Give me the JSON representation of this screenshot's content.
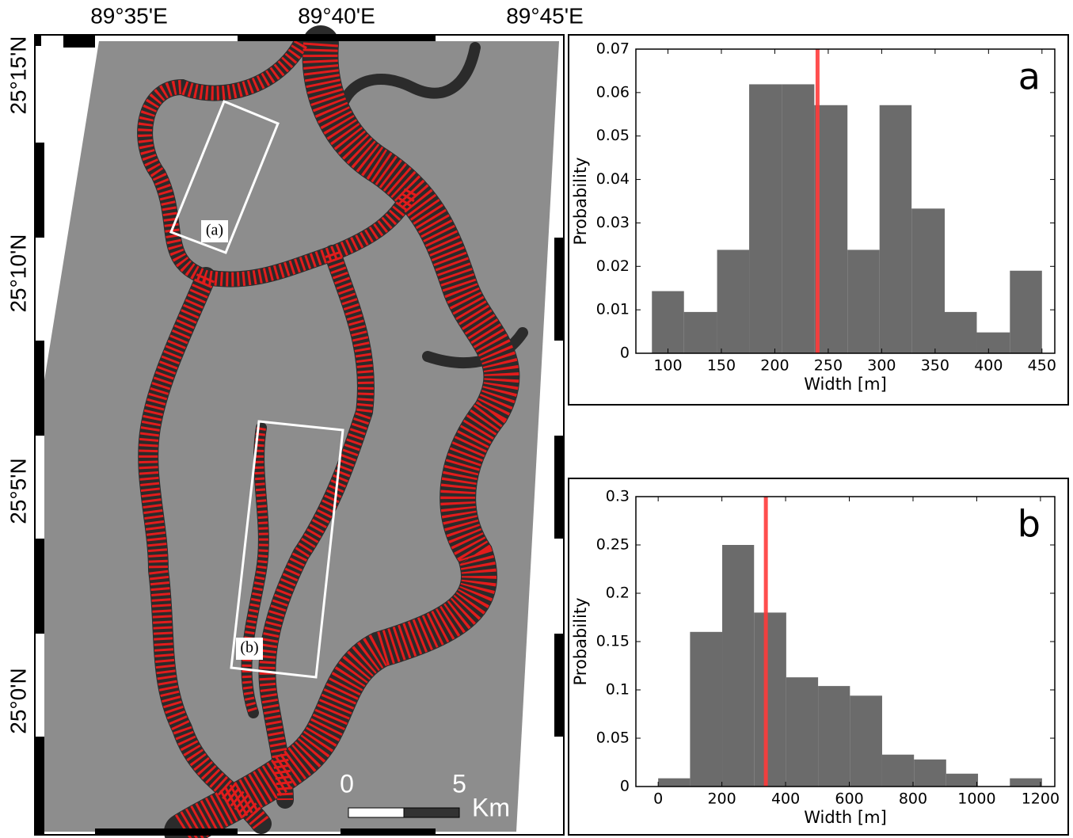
{
  "map": {
    "lon_labels": [
      "89°35'E",
      "89°40'E",
      "89°45'E"
    ],
    "lat_labels": [
      "25°15'N",
      "25°10'N",
      "25°5'N",
      "25°0'N"
    ],
    "box_labels": [
      "(a)",
      "(b)"
    ],
    "scale_labels": [
      "0",
      "5",
      "Km"
    ]
  },
  "chart_data": [
    {
      "type": "histogram",
      "panel_label": "a",
      "x_label": "Width [m]",
      "y_label": "Probability",
      "bins": [
        85,
        115,
        146,
        176,
        207,
        237,
        268,
        298,
        328,
        359,
        389,
        420,
        450
      ],
      "values": [
        0.0143,
        0.0095,
        0.0238,
        0.0619,
        0.0619,
        0.0571,
        0.0238,
        0.0571,
        0.0333,
        0.0095,
        0.0048,
        0.019
      ],
      "color": "#6b6b6b",
      "marker_line": 240,
      "marker_color": "#ff3b3b",
      "xlim": [
        70,
        462
      ],
      "xticks": [
        100,
        150,
        200,
        250,
        300,
        350,
        400,
        450
      ],
      "ylim": [
        0,
        0.07
      ],
      "yticks": [
        0,
        0.01,
        0.02,
        0.03,
        0.04,
        0.05,
        0.06,
        0.07
      ]
    },
    {
      "type": "histogram",
      "panel_label": "b",
      "x_label": "Width [m]",
      "y_label": "Probability",
      "bins": [
        0,
        100,
        201,
        301,
        402,
        502,
        602,
        703,
        803,
        904,
        1004,
        1104,
        1205
      ],
      "values": [
        0.0085,
        0.16,
        0.25,
        0.18,
        0.113,
        0.104,
        0.094,
        0.033,
        0.028,
        0.0133,
        0,
        0.0085
      ],
      "color": "#6b6b6b",
      "marker_line": 338,
      "marker_color": "#ff3b3b",
      "xlim": [
        -70,
        1245
      ],
      "xticks": [
        0,
        200,
        400,
        600,
        800,
        1000,
        1200
      ],
      "ylim": [
        0,
        0.3
      ],
      "yticks": [
        0,
        0.05,
        0.1,
        0.15,
        0.2,
        0.25,
        0.3
      ]
    }
  ]
}
